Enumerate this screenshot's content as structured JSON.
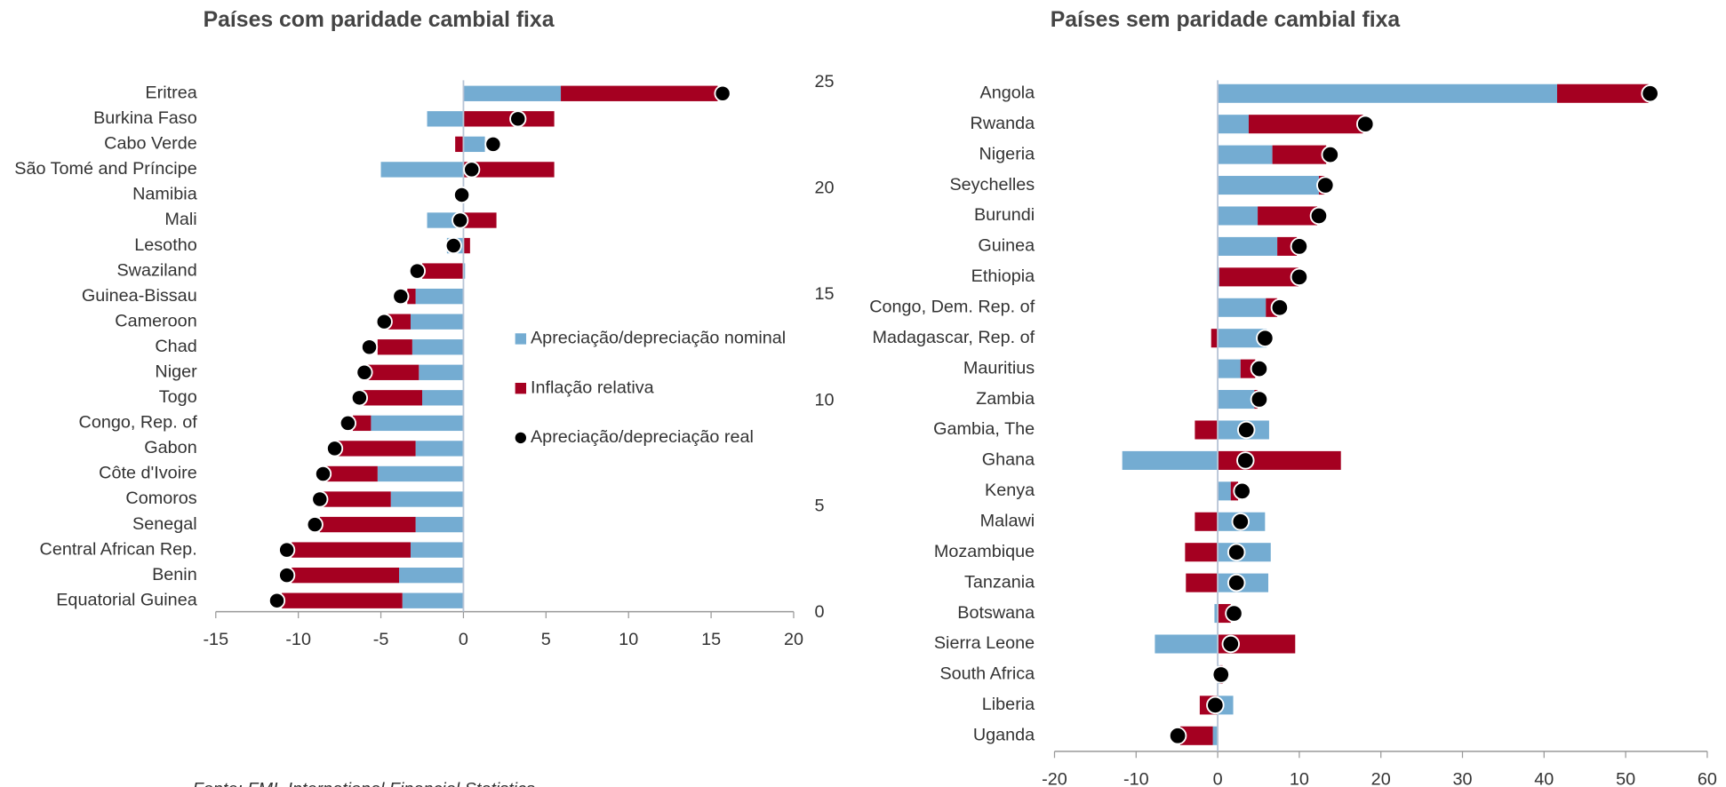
{
  "chart_data": [
    {
      "type": "bar",
      "orientation": "horizontal",
      "title": "Países com paridade cambial fixa",
      "categories": [
        "Eritrea",
        "Burkina Faso",
        "Cabo Verde",
        "São Tomé and Príncipe",
        "Namibia",
        "Mali",
        "Lesotho",
        "Swaziland",
        "Guinea-Bissau",
        "Cameroon",
        "Chad",
        "Niger",
        "Togo",
        "Congo, Rep. of",
        "Gabon",
        "Côte d'Ivoire",
        "Comoros",
        "Senegal",
        "Central African Rep.",
        "Benin",
        "Equatorial Guinea"
      ],
      "series": [
        {
          "name": "Apreciação/depreciação nominal",
          "type": "bar",
          "color": "#74acd2",
          "values": [
            5.9,
            -2.2,
            1.3,
            -5.0,
            -0.2,
            -2.2,
            -1.0,
            0.1,
            -2.9,
            -3.2,
            -3.1,
            -2.7,
            -2.5,
            -5.6,
            -2.9,
            -5.2,
            -4.4,
            -2.9,
            -3.2,
            -3.9,
            -3.7
          ]
        },
        {
          "name": "Inflação relativa",
          "type": "bar",
          "color": "#a50021",
          "values": [
            9.5,
            5.5,
            -0.5,
            5.5,
            0.1,
            2.0,
            0.4,
            -2.5,
            -0.5,
            -1.5,
            -2.1,
            -3.1,
            -3.6,
            -1.1,
            -4.8,
            -3.1,
            -4.1,
            -5.8,
            -7.2,
            -6.5,
            -7.3
          ]
        },
        {
          "name": "Apreciação/depreciação real",
          "type": "scatter",
          "color": "#000000",
          "values": [
            15.7,
            3.3,
            1.8,
            0.5,
            -0.1,
            -0.2,
            -0.6,
            -2.8,
            -3.8,
            -4.8,
            -5.7,
            -6.0,
            -6.3,
            -7.0,
            -7.8,
            -8.5,
            -8.7,
            -9.0,
            -10.7,
            -10.7,
            -11.3
          ]
        }
      ],
      "xlim": [
        -15,
        20
      ],
      "xticks": [
        -15,
        -10,
        -5,
        0,
        5,
        10,
        15,
        20
      ],
      "y2lim": [
        0,
        25
      ],
      "y2ticks": [
        0,
        5,
        10,
        15,
        20,
        25
      ],
      "legend": "center-right",
      "source": "Fonte: FMI, International Financial Statistics"
    },
    {
      "type": "bar",
      "orientation": "horizontal",
      "title": "Países sem paridade cambial fixa",
      "categories": [
        "Angola",
        "Rwanda",
        "Nigeria",
        "Seychelles",
        "Burundi",
        "Guinea",
        "Ethiopia",
        "Congo, Dem. Rep. of",
        "Madagascar, Rep. of",
        "Mauritius",
        "Zambia",
        "Gambia, The",
        "Ghana",
        "Kenya",
        "Malawi",
        "Mozambique",
        "Tanzania",
        "Botswana",
        "Sierra Leone",
        "South Africa",
        "Liberia",
        "Uganda"
      ],
      "series": [
        {
          "type": "bar",
          "color": "#74acd2",
          "values": [
            41.6,
            3.8,
            6.7,
            12.4,
            4.9,
            7.3,
            0.2,
            5.9,
            6.0,
            2.8,
            4.5,
            6.3,
            -11.7,
            1.6,
            5.8,
            6.5,
            6.2,
            -0.4,
            -7.7,
            0.3,
            1.9,
            -0.6
          ]
        },
        {
          "type": "bar",
          "color": "#a50021",
          "values": [
            11.2,
            14.0,
            6.6,
            0.7,
            7.3,
            2.4,
            9.7,
            1.4,
            -0.8,
            1.8,
            0.4,
            -2.8,
            15.1,
            0.9,
            -2.8,
            -4.0,
            -3.9,
            1.6,
            9.5,
            0.3,
            -2.2,
            -4.0
          ]
        },
        {
          "type": "scatter",
          "color": "#000000",
          "values": [
            53.0,
            18.1,
            13.8,
            13.2,
            12.4,
            10.0,
            10.0,
            7.6,
            5.8,
            5.1,
            5.1,
            3.5,
            3.4,
            3.0,
            2.8,
            2.3,
            2.3,
            2.0,
            1.6,
            0.4,
            -0.3,
            -4.9
          ]
        }
      ],
      "xlim": [
        -20,
        60
      ],
      "xticks": [
        -20,
        -10,
        0,
        10,
        20,
        30,
        40,
        50,
        60
      ]
    }
  ]
}
